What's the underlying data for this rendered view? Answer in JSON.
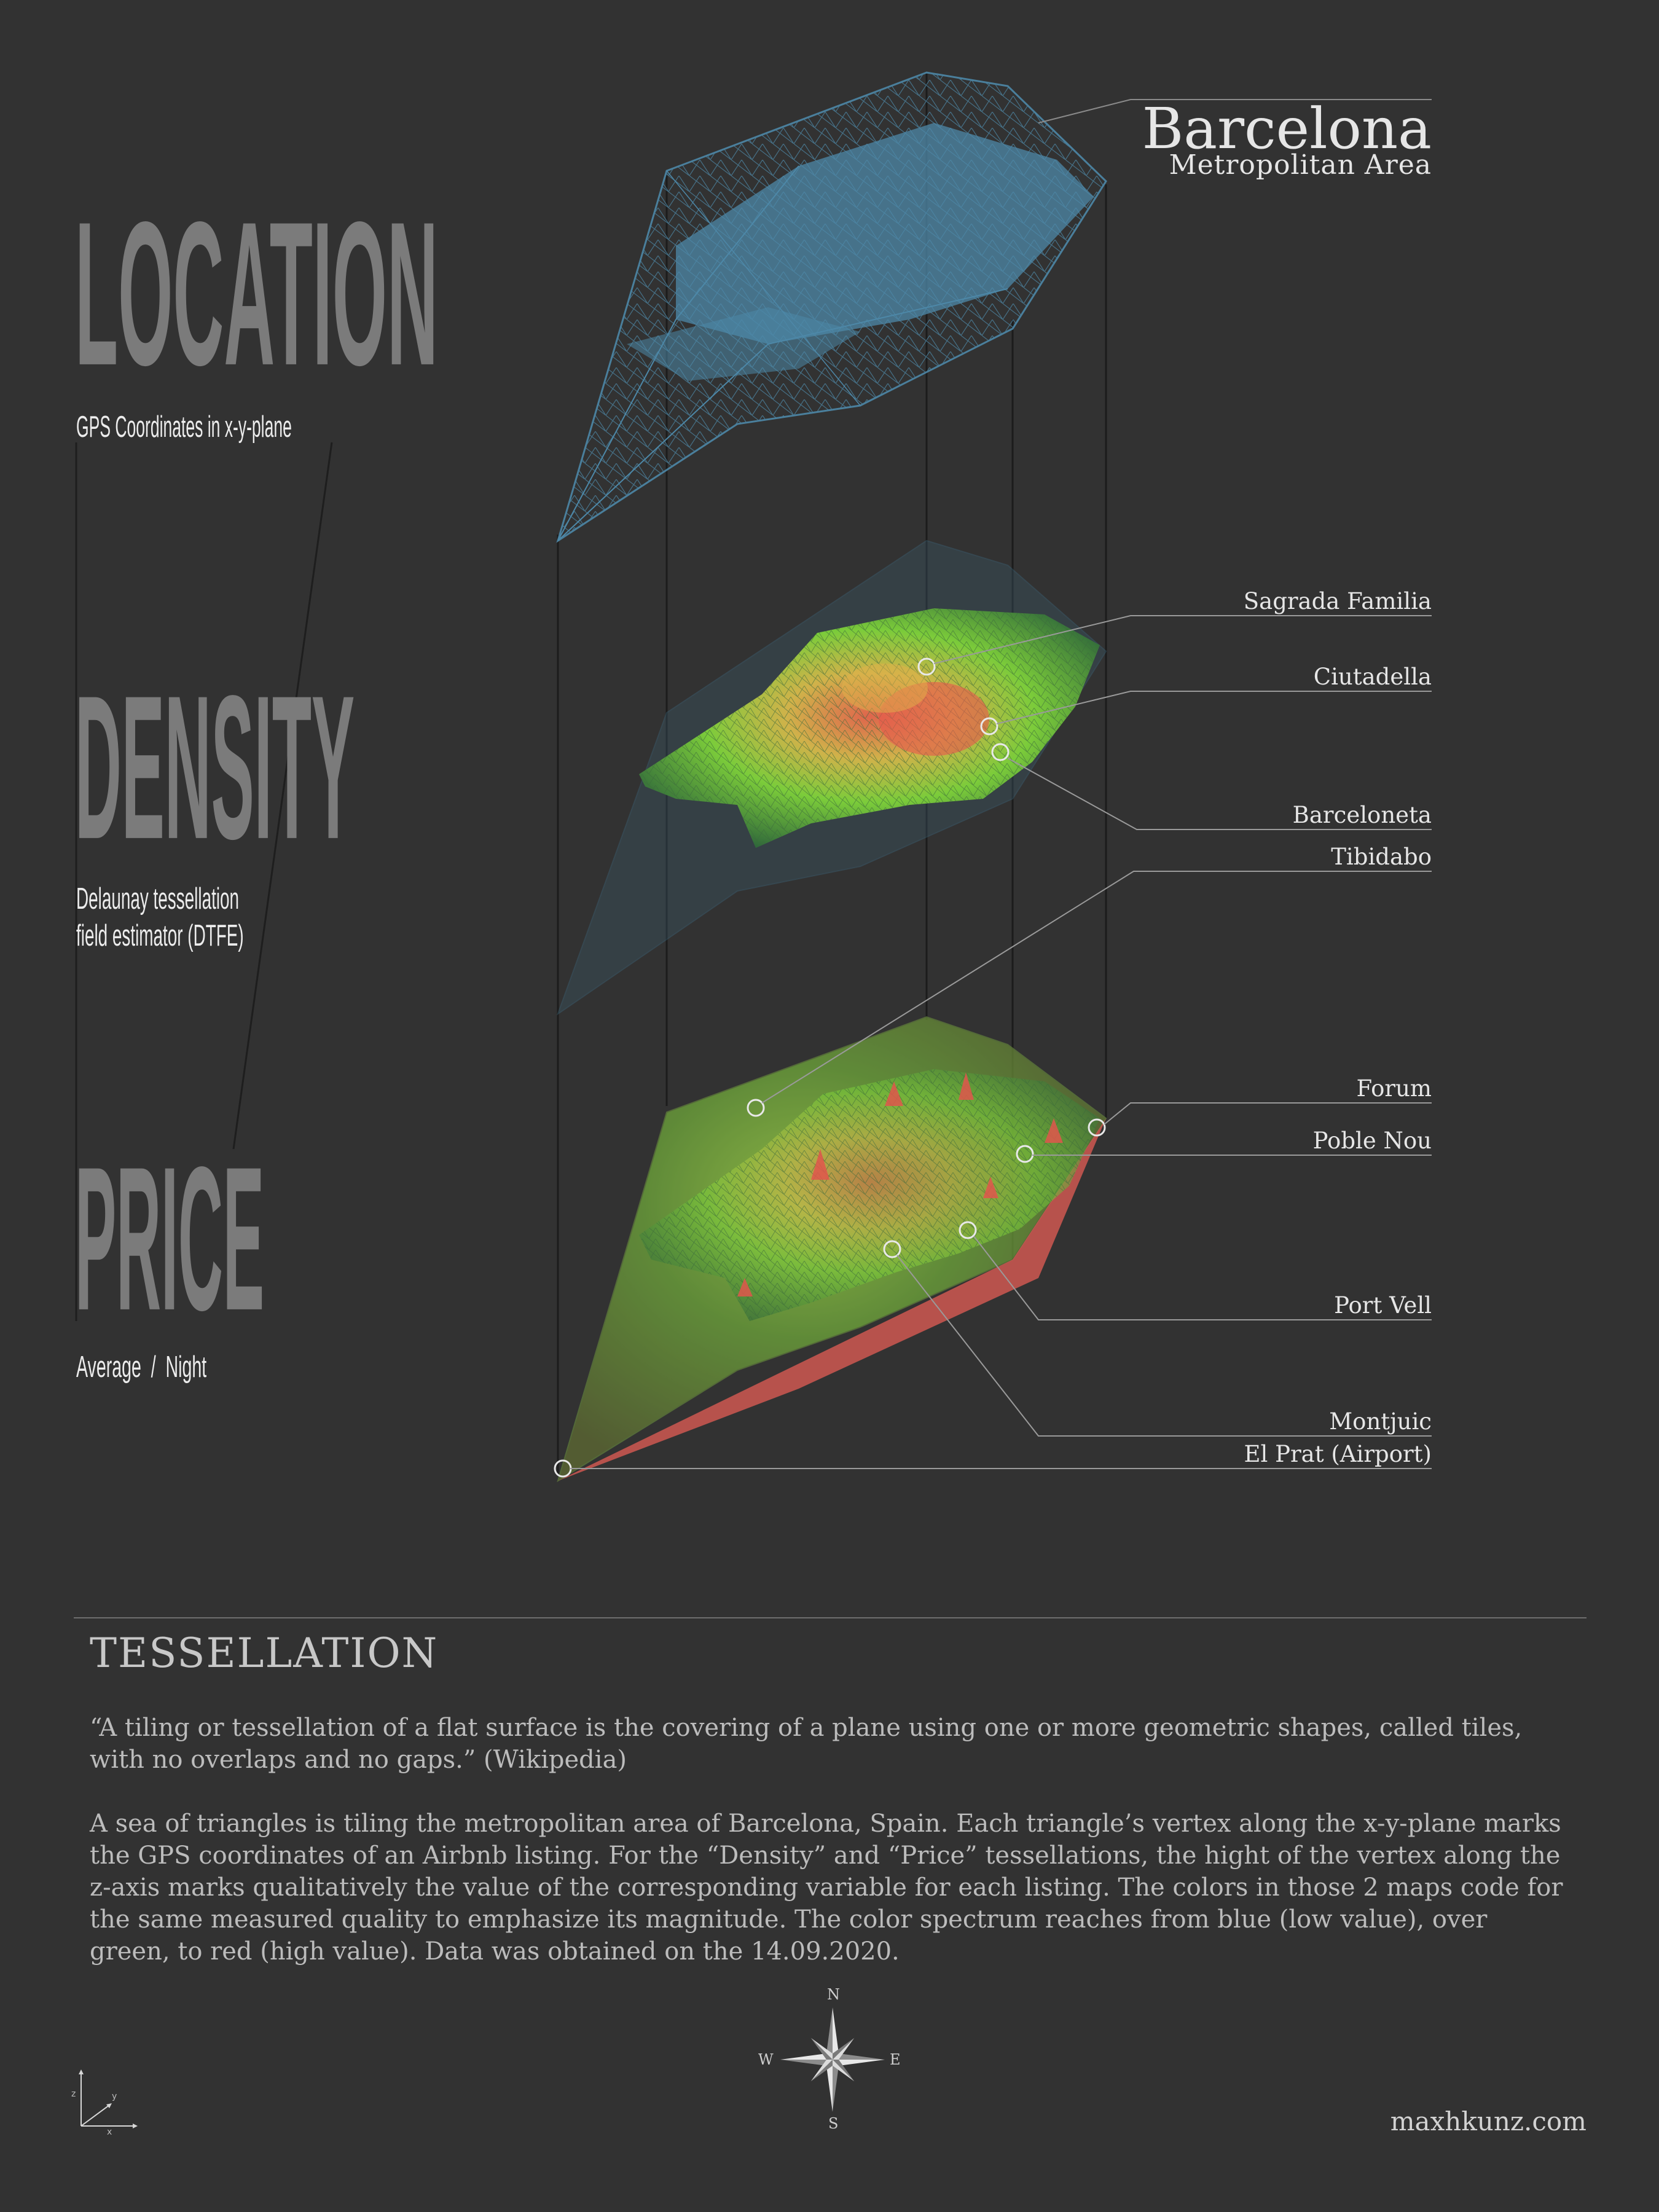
{
  "header": {
    "title": "Barcelona",
    "subtitle": "Metropolitan Area"
  },
  "sections": [
    {
      "heading": "LOCATION",
      "caption": "GPS Coordinates in x-y-plane"
    },
    {
      "heading": "DENSITY",
      "caption_line1": "Delaunay tessellation",
      "caption_line2": "field estimator (DTFE)"
    },
    {
      "heading": "PRICE",
      "caption": "Average  /  Night"
    }
  ],
  "landmarks": [
    "Sagrada Familia",
    "Ciutadella",
    "Barceloneta",
    "Tibidabo",
    "Forum",
    "Poble Nou",
    "Port Vell",
    "Montjuic",
    "El Prat (Airport)"
  ],
  "article": {
    "title": "TESSELLATION",
    "quote": "“A tiling or tessellation of a flat surface is the covering of a plane using one or more geometric shapes, called tiles, with no overlaps and no gaps.” (Wikipedia)",
    "body": "A sea of triangles is tiling the metropolitan area of Barcelona, Spain. Each triangle’s vertex along the x-y-plane marks the GPS coordinates of an Airbnb listing. For the “Density” and “Price” tessellations, the hight of the vertex along the z-axis marks qualitatively the value of the corresponding variable for each listing.  The colors in those 2 maps code for the same measured quality to emphasize its magnitude. The color spectrum reaches from blue (low value), over green, to red (high value). Data was obtained on the 14.09.2020."
  },
  "compass": {
    "n": "N",
    "s": "S",
    "e": "E",
    "w": "W"
  },
  "axes": {
    "x": "x",
    "y": "y",
    "z": "z"
  },
  "footer": {
    "site": "maxhkunz.com"
  },
  "colors": {
    "background": "#323232",
    "location_mesh": "#4d88a8",
    "low_value": "#3f7aa0",
    "mid_value": "#7fd33a",
    "high_value": "#e85a4f"
  },
  "icons": [
    "compass-rose-icon",
    "xyz-axes-icon"
  ]
}
